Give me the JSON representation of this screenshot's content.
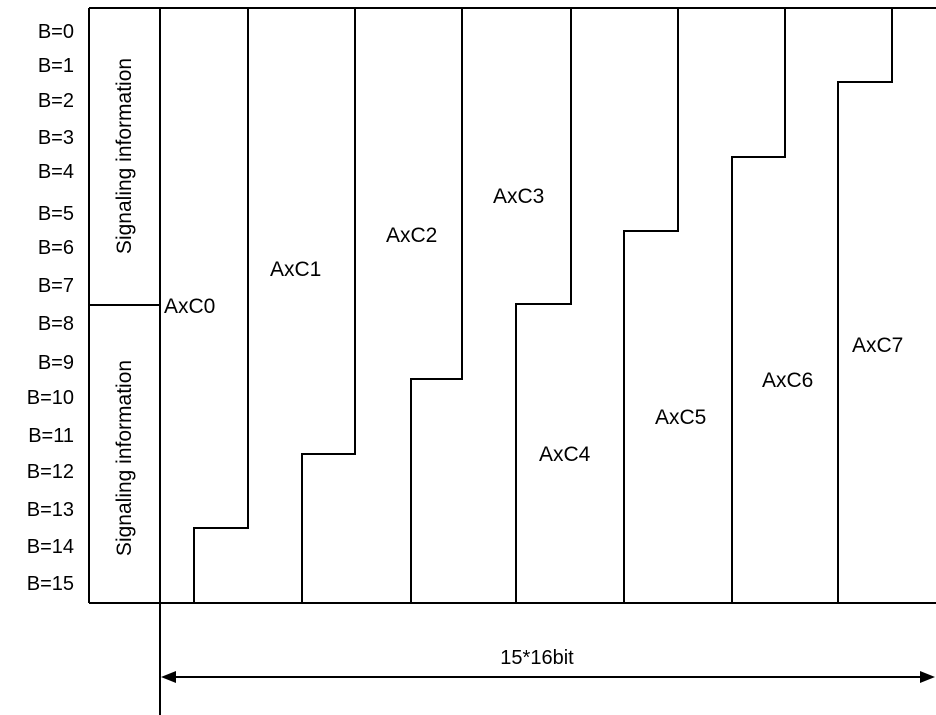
{
  "rows": [
    "B=0",
    "B=1",
    "B=2",
    "B=3",
    "B=4",
    "B=5",
    "B=6",
    "B=7",
    "B=8",
    "B=9",
    "B=10",
    "B=11",
    "B=12",
    "B=13",
    "B=14",
    "B=15"
  ],
  "signaling": {
    "upper": "Signaling information",
    "lower": "Signaling information"
  },
  "axc": [
    "AxC0",
    "AxC1",
    "AxC2",
    "AxC3",
    "AxC4",
    "AxC5",
    "AxC6",
    "AxC7"
  ],
  "dimension": {
    "label": "15*16bit"
  }
}
